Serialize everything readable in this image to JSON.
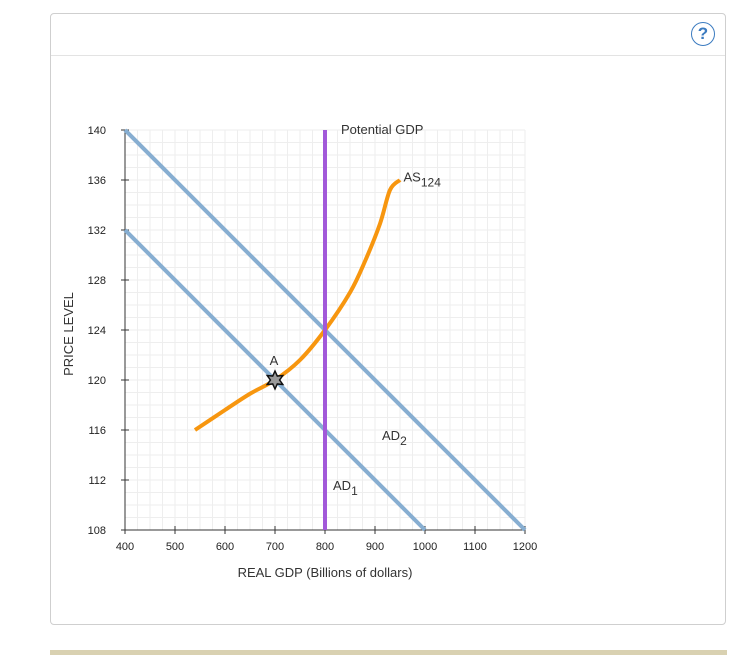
{
  "help": {
    "label": "?"
  },
  "chart_data": {
    "type": "line",
    "xlabel": "REAL GDP (Billions of dollars)",
    "ylabel": "PRICE LEVEL",
    "xlim": [
      400,
      1200
    ],
    "ylim": [
      108,
      140
    ],
    "x_ticks": [
      400,
      500,
      600,
      700,
      800,
      900,
      1000,
      1100,
      1200
    ],
    "y_ticks": [
      108,
      112,
      116,
      120,
      124,
      128,
      132,
      136,
      140
    ],
    "grid": true,
    "potential_gdp": {
      "label": "Potential GDP",
      "x": 800,
      "color": "#a259d9"
    },
    "series": [
      {
        "name": "AD1",
        "label_main": "AD",
        "label_sub": "1",
        "color": "#87aed1",
        "x": [
          400,
          1000
        ],
        "y": [
          132,
          108
        ]
      },
      {
        "name": "AD2",
        "label_main": "AD",
        "label_sub": "2",
        "color": "#87aed1",
        "x": [
          400,
          1200
        ],
        "y": [
          140,
          108
        ]
      },
      {
        "name": "AS124",
        "label_main": "AS",
        "label_sub": "124",
        "color": "#f7960f",
        "x": [
          540,
          600,
          650,
          700,
          750,
          800,
          850,
          880,
          910,
          930,
          950
        ],
        "y": [
          116,
          117.6,
          118.9,
          120,
          121.6,
          124,
          127,
          129.5,
          132.5,
          135.2,
          136
        ]
      }
    ],
    "points": [
      {
        "label": "A",
        "x": 700,
        "y": 120
      }
    ]
  }
}
